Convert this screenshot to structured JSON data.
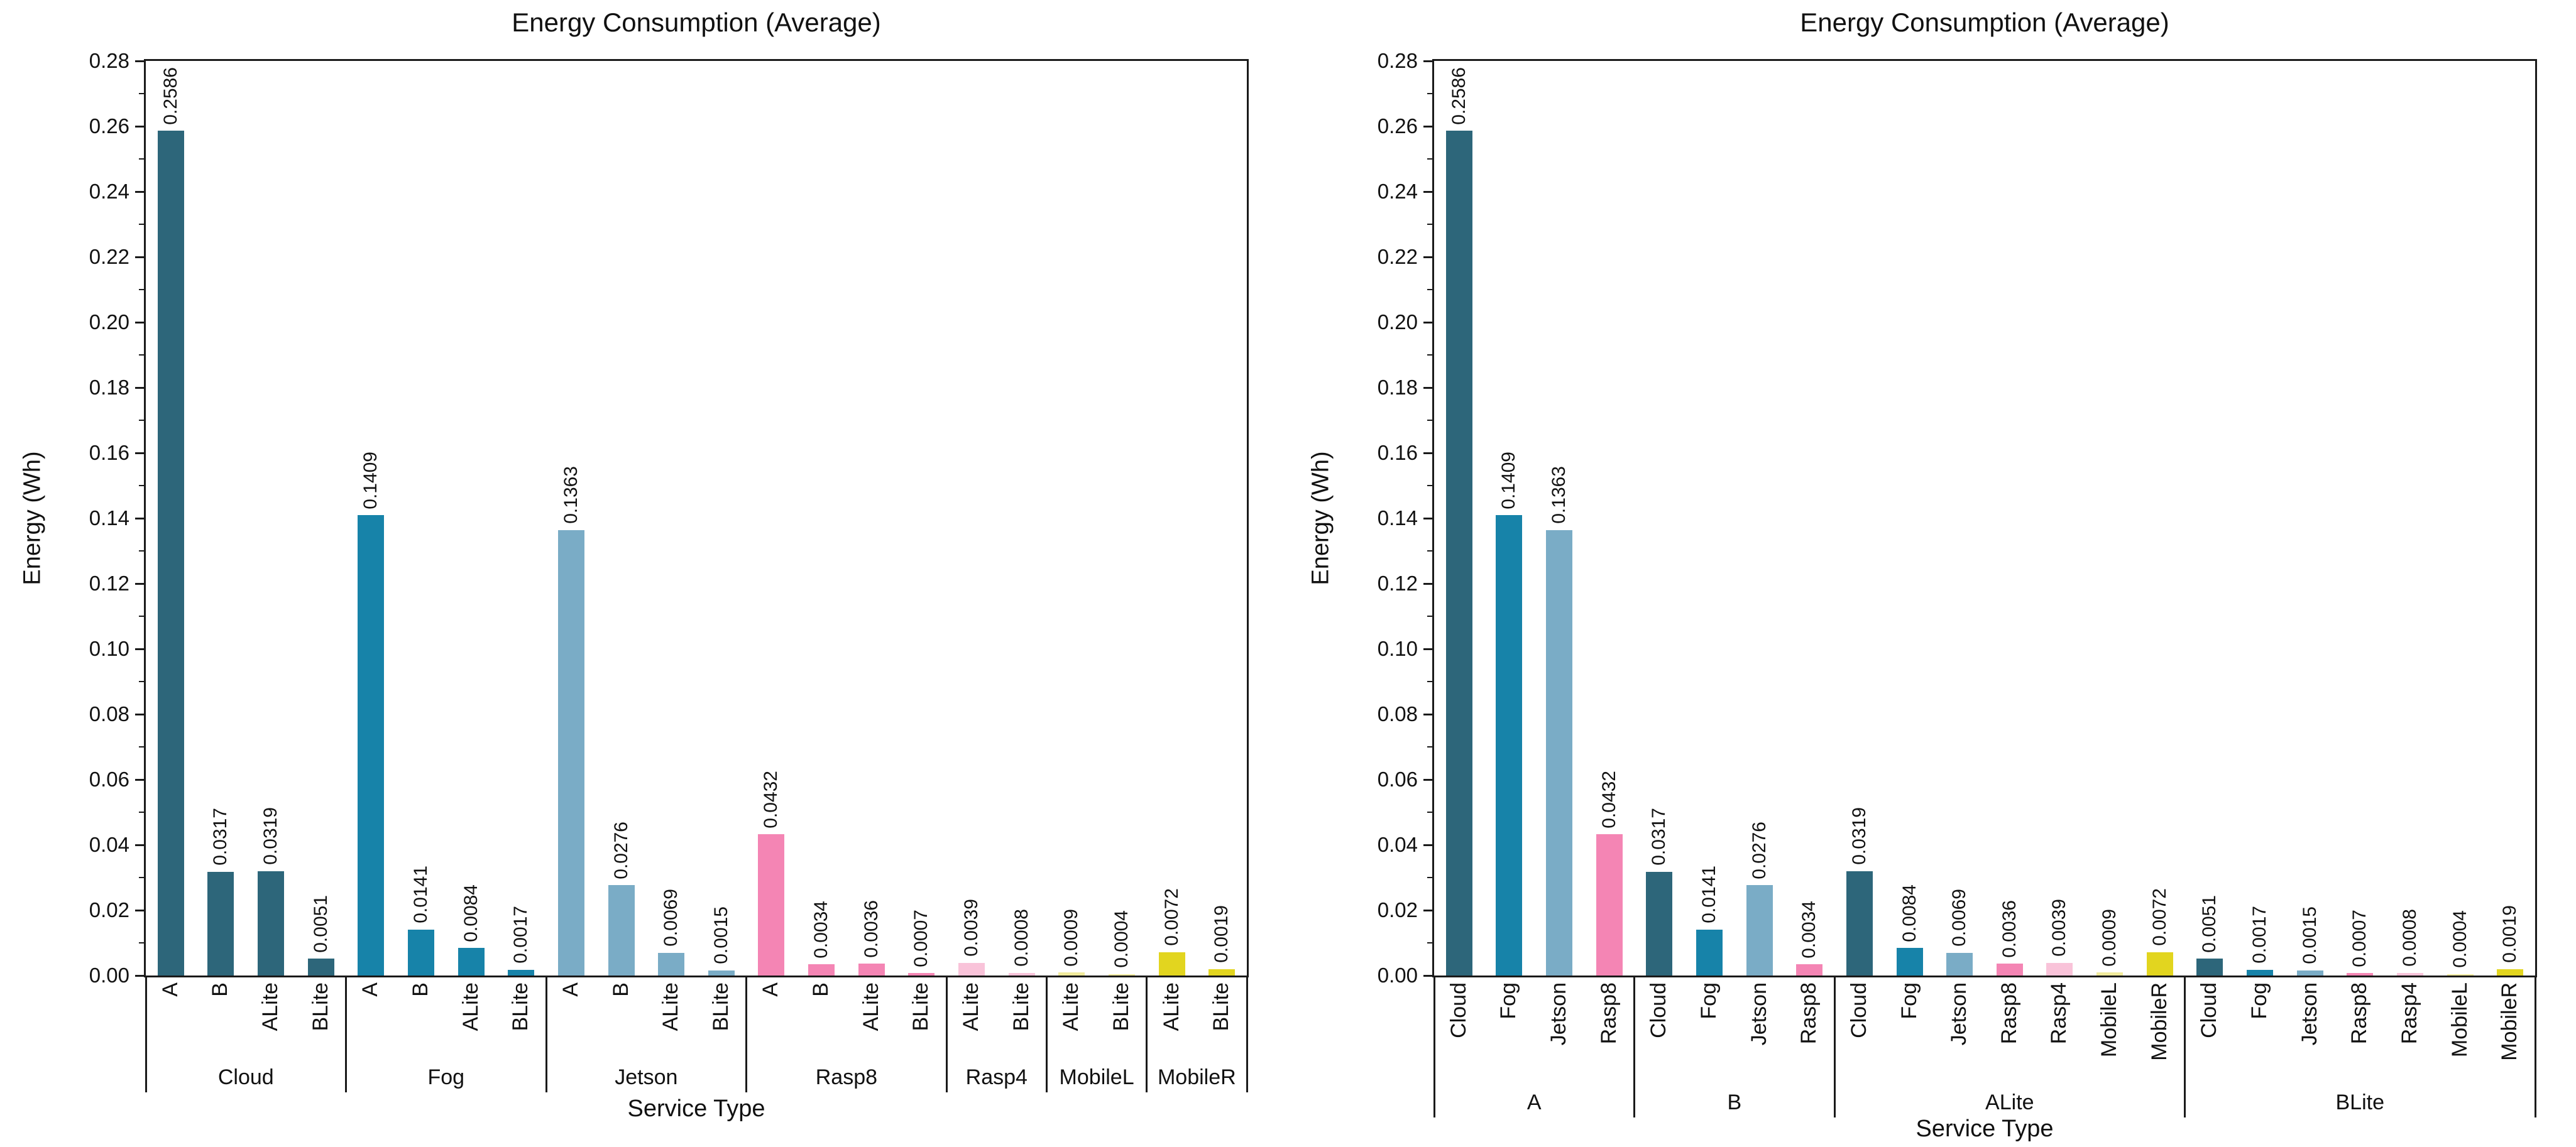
{
  "device_colors": {
    "Cloud": "#2d667a",
    "Fog": "#1783a9",
    "Jetson": "#7aacc6",
    "Rasp8": "#f485b4",
    "Rasp4": "#f9c3d9",
    "MobileL": "#f1eb9c",
    "MobileR": "#e2d51f"
  },
  "chart_data": [
    {
      "type": "bar",
      "title": "Energy Consumption (Average)",
      "xlabel": "Service Type",
      "ylabel": "Energy (Wh)",
      "ylim": [
        0,
        0.28
      ],
      "ytick_step": 0.02,
      "y_minor_step": 0.01,
      "grid": false,
      "legend": "none",
      "value_label_decimals": 4,
      "group_key": "device",
      "bar_key": "service",
      "groups": [
        {
          "label": "Cloud",
          "bars": [
            {
              "label": "A",
              "value": 0.2586
            },
            {
              "label": "B",
              "value": 0.0317
            },
            {
              "label": "ALite",
              "value": 0.0319
            },
            {
              "label": "BLite",
              "value": 0.0051
            }
          ]
        },
        {
          "label": "Fog",
          "bars": [
            {
              "label": "A",
              "value": 0.1409
            },
            {
              "label": "B",
              "value": 0.0141
            },
            {
              "label": "ALite",
              "value": 0.0084
            },
            {
              "label": "BLite",
              "value": 0.0017
            }
          ]
        },
        {
          "label": "Jetson",
          "bars": [
            {
              "label": "A",
              "value": 0.1363
            },
            {
              "label": "B",
              "value": 0.0276
            },
            {
              "label": "ALite",
              "value": 0.0069
            },
            {
              "label": "BLite",
              "value": 0.0015
            }
          ]
        },
        {
          "label": "Rasp8",
          "bars": [
            {
              "label": "A",
              "value": 0.0432
            },
            {
              "label": "B",
              "value": 0.0034
            },
            {
              "label": "ALite",
              "value": 0.0036
            },
            {
              "label": "BLite",
              "value": 0.0007
            }
          ]
        },
        {
          "label": "Rasp4",
          "bars": [
            {
              "label": "ALite",
              "value": 0.0039
            },
            {
              "label": "BLite",
              "value": 0.0008
            }
          ]
        },
        {
          "label": "MobileL",
          "bars": [
            {
              "label": "ALite",
              "value": 0.0009
            },
            {
              "label": "BLite",
              "value": 0.0004
            }
          ]
        },
        {
          "label": "MobileR",
          "bars": [
            {
              "label": "ALite",
              "value": 0.0072
            },
            {
              "label": "BLite",
              "value": 0.0019
            }
          ]
        }
      ]
    },
    {
      "type": "bar",
      "title": "Energy Consumption (Average)",
      "xlabel": "Service Type",
      "ylabel": "Energy (Wh)",
      "ylim": [
        0,
        0.28
      ],
      "ytick_step": 0.02,
      "y_minor_step": 0.01,
      "grid": false,
      "legend": "none",
      "value_label_decimals": 4,
      "group_key": "service",
      "bar_key": "device",
      "groups": [
        {
          "label": "A",
          "bars": [
            {
              "label": "Cloud",
              "value": 0.2586
            },
            {
              "label": "Fog",
              "value": 0.1409
            },
            {
              "label": "Jetson",
              "value": 0.1363
            },
            {
              "label": "Rasp8",
              "value": 0.0432
            }
          ]
        },
        {
          "label": "B",
          "bars": [
            {
              "label": "Cloud",
              "value": 0.0317
            },
            {
              "label": "Fog",
              "value": 0.0141
            },
            {
              "label": "Jetson",
              "value": 0.0276
            },
            {
              "label": "Rasp8",
              "value": 0.0034
            }
          ]
        },
        {
          "label": "ALite",
          "bars": [
            {
              "label": "Cloud",
              "value": 0.0319
            },
            {
              "label": "Fog",
              "value": 0.0084
            },
            {
              "label": "Jetson",
              "value": 0.0069
            },
            {
              "label": "Rasp8",
              "value": 0.0036
            },
            {
              "label": "Rasp4",
              "value": 0.0039
            },
            {
              "label": "MobileL",
              "value": 0.0009
            },
            {
              "label": "MobileR",
              "value": 0.0072
            }
          ]
        },
        {
          "label": "BLite",
          "bars": [
            {
              "label": "Cloud",
              "value": 0.0051
            },
            {
              "label": "Fog",
              "value": 0.0017
            },
            {
              "label": "Jetson",
              "value": 0.0015
            },
            {
              "label": "Rasp8",
              "value": 0.0007
            },
            {
              "label": "Rasp4",
              "value": 0.0008
            },
            {
              "label": "MobileL",
              "value": 0.0004
            },
            {
              "label": "MobileR",
              "value": 0.0019
            }
          ]
        }
      ]
    }
  ]
}
